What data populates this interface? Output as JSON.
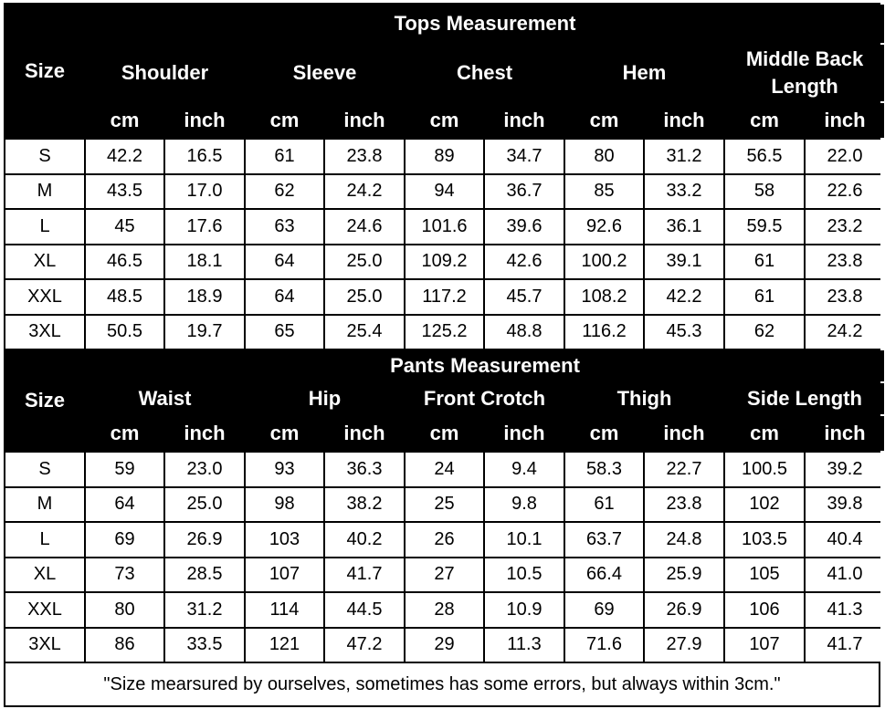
{
  "tops": {
    "title": "Tops Measurement",
    "size_label": "Size",
    "groups": [
      "Shoulder",
      "Sleeve",
      "Chest",
      "Hem",
      "Middle Back Length"
    ],
    "units": [
      "cm",
      "inch"
    ],
    "rows": [
      [
        "S",
        "42.2",
        "16.5",
        "61",
        "23.8",
        "89",
        "34.7",
        "80",
        "31.2",
        "56.5",
        "22.0"
      ],
      [
        "M",
        "43.5",
        "17.0",
        "62",
        "24.2",
        "94",
        "36.7",
        "85",
        "33.2",
        "58",
        "22.6"
      ],
      [
        "L",
        "45",
        "17.6",
        "63",
        "24.6",
        "101.6",
        "39.6",
        "92.6",
        "36.1",
        "59.5",
        "23.2"
      ],
      [
        "XL",
        "46.5",
        "18.1",
        "64",
        "25.0",
        "109.2",
        "42.6",
        "100.2",
        "39.1",
        "61",
        "23.8"
      ],
      [
        "XXL",
        "48.5",
        "18.9",
        "64",
        "25.0",
        "117.2",
        "45.7",
        "108.2",
        "42.2",
        "61",
        "23.8"
      ],
      [
        "3XL",
        "50.5",
        "19.7",
        "65",
        "25.4",
        "125.2",
        "48.8",
        "116.2",
        "45.3",
        "62",
        "24.2"
      ]
    ]
  },
  "pants": {
    "title": "Pants Measurement",
    "size_label": "Size",
    "groups": [
      "Waist",
      "Hip",
      "Front Crotch",
      "Thigh",
      "Side Length"
    ],
    "units": [
      "cm",
      "inch"
    ],
    "rows": [
      [
        "S",
        "59",
        "23.0",
        "93",
        "36.3",
        "24",
        "9.4",
        "58.3",
        "22.7",
        "100.5",
        "39.2"
      ],
      [
        "M",
        "64",
        "25.0",
        "98",
        "38.2",
        "25",
        "9.8",
        "61",
        "23.8",
        "102",
        "39.8"
      ],
      [
        "L",
        "69",
        "26.9",
        "103",
        "40.2",
        "26",
        "10.1",
        "63.7",
        "24.8",
        "103.5",
        "40.4"
      ],
      [
        "XL",
        "73",
        "28.5",
        "107",
        "41.7",
        "27",
        "10.5",
        "66.4",
        "25.9",
        "105",
        "41.0"
      ],
      [
        "XXL",
        "80",
        "31.2",
        "114",
        "44.5",
        "28",
        "10.9",
        "69",
        "26.9",
        "106",
        "41.3"
      ],
      [
        "3XL",
        "86",
        "33.5",
        "121",
        "47.2",
        "29",
        "11.3",
        "71.6",
        "27.9",
        "107",
        "41.7"
      ]
    ]
  },
  "footnote": "\"Size mearsured by ourselves, sometimes has some errors, but always within 3cm.\""
}
